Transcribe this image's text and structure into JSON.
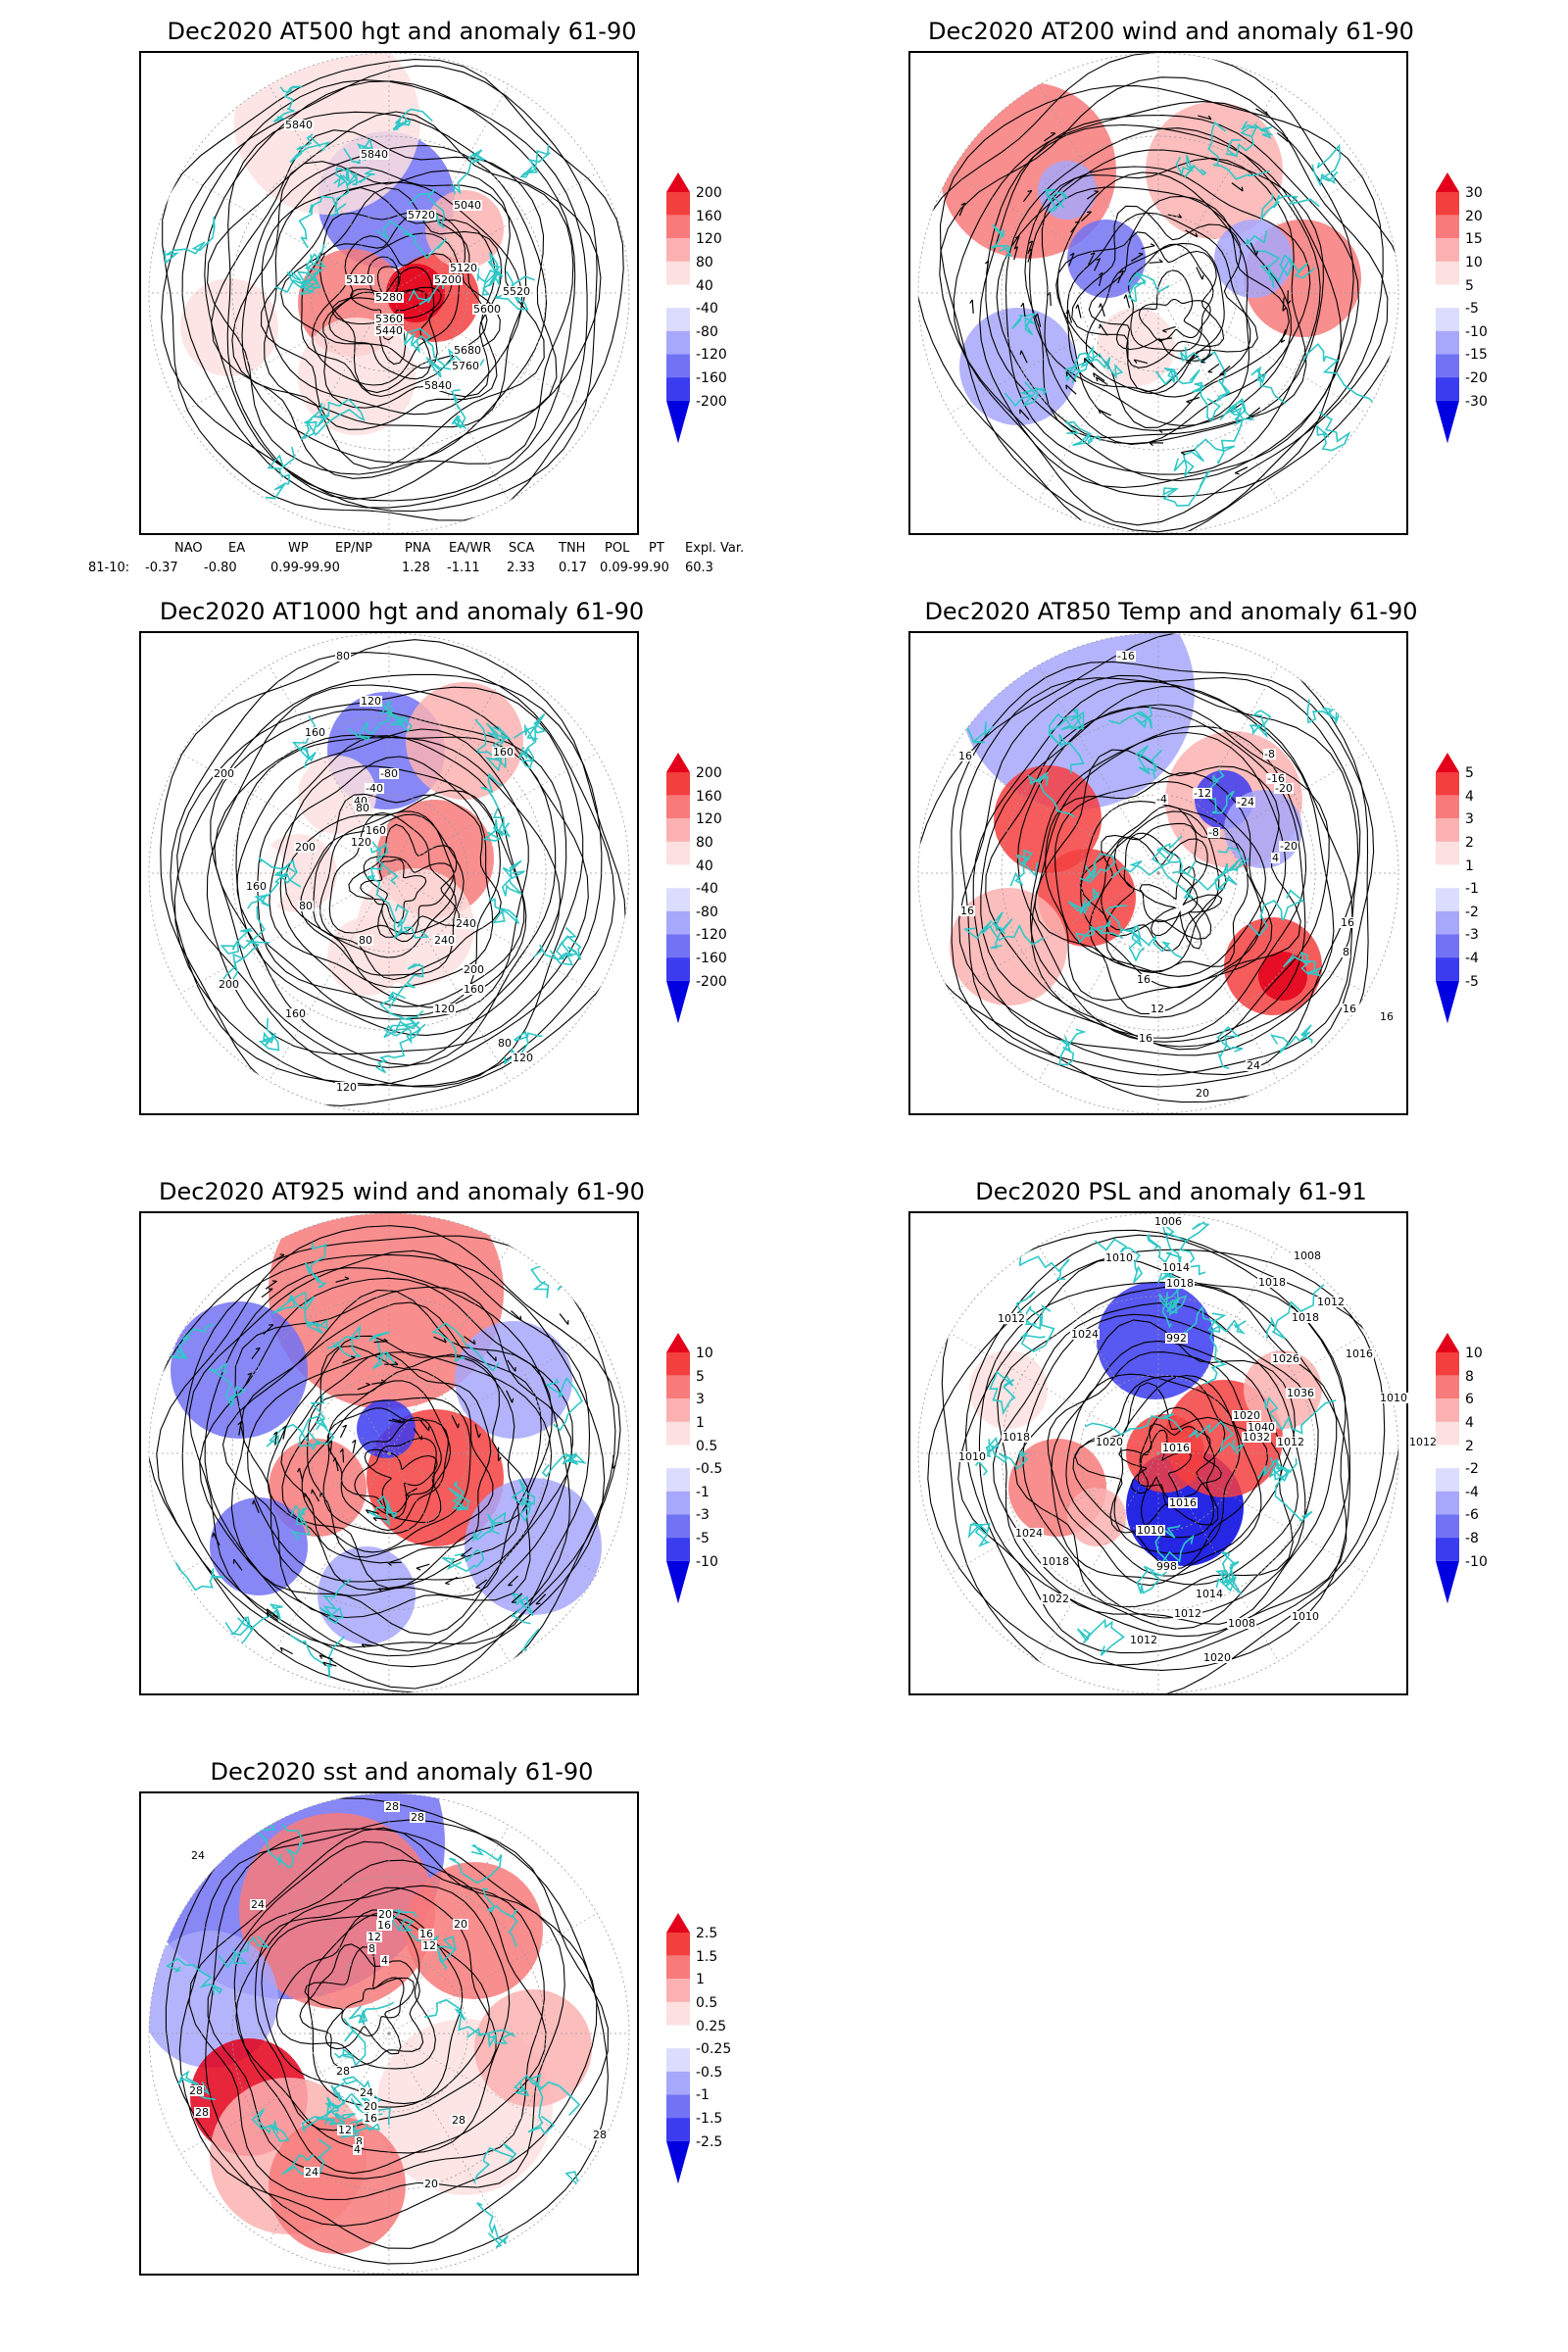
{
  "panels": [
    {
      "id": "at500",
      "title": "Dec2020 AT500 hgt and anomaly 61-90",
      "colorbar": {
        "labels": [
          "200",
          "160",
          "120",
          "80",
          "40",
          "-40",
          "-80",
          "-120",
          "-160",
          "-200"
        ],
        "colors": [
          "#e3001a",
          "#f43f3f",
          "#f87a7a",
          "#fbb1b1",
          "#fde0e0",
          "#ffffff",
          "#dcdcff",
          "#a7a7fb",
          "#7272f5",
          "#3b3bf0",
          "#0000e0"
        ]
      },
      "contour_labels": [
        "5840",
        "5840",
        "5040",
        "5720",
        "5120",
        "5200",
        "5120",
        "5280",
        "5520",
        "5600",
        "5360",
        "5440",
        "5680",
        "5760",
        "5840"
      ]
    },
    {
      "id": "at200",
      "title": "Dec2020 AT200 wind and anomaly 61-90",
      "colorbar": {
        "labels": [
          "30",
          "20",
          "15",
          "10",
          "5",
          "-5",
          "-10",
          "-15",
          "-20",
          "-30"
        ],
        "colors": [
          "#e3001a",
          "#f43f3f",
          "#f87a7a",
          "#fbb1b1",
          "#fde0e0",
          "#ffffff",
          "#dcdcff",
          "#a7a7fb",
          "#7272f5",
          "#3b3bf0",
          "#0000e0"
        ]
      },
      "contour_labels": []
    },
    {
      "id": "at1000",
      "title": "Dec2020 AT1000 hgt and anomaly 61-90",
      "colorbar": {
        "labels": [
          "200",
          "160",
          "120",
          "80",
          "40",
          "-40",
          "-80",
          "-120",
          "-160",
          "-200"
        ],
        "colors": [
          "#e3001a",
          "#f43f3f",
          "#f87a7a",
          "#fbb1b1",
          "#fde0e0",
          "#ffffff",
          "#dcdcff",
          "#a7a7fb",
          "#7272f5",
          "#3b3bf0",
          "#0000e0"
        ]
      },
      "contour_labels": [
        "80",
        "120",
        "160",
        "200",
        "200",
        "160",
        "80",
        "80",
        "-80",
        "-40",
        "40",
        "80",
        "120",
        "160",
        "160",
        "240",
        "240",
        "200",
        "160",
        "200",
        "120",
        "160",
        "80",
        "120",
        "120"
      ]
    },
    {
      "id": "at850",
      "title": "Dec2020 AT850 Temp and anomaly 61-90",
      "colorbar": {
        "labels": [
          "5",
          "4",
          "3",
          "2",
          "1",
          "-1",
          "-2",
          "-3",
          "-4",
          "-5"
        ],
        "colors": [
          "#e3001a",
          "#f43f3f",
          "#f87a7a",
          "#fbb1b1",
          "#fde0e0",
          "#ffffff",
          "#dcdcff",
          "#a7a7fb",
          "#7272f5",
          "#3b3bf0",
          "#0000e0"
        ]
      },
      "contour_labels": [
        "-16",
        "16",
        "16",
        "-8",
        "-16",
        "-24",
        "-20",
        "-20",
        "-12",
        "-8",
        "-4",
        "4",
        "8",
        "16",
        "16",
        "12",
        "16",
        "24",
        "20",
        "16",
        "16"
      ]
    },
    {
      "id": "at925",
      "title": "Dec2020 AT925 wind and anomaly 61-90",
      "colorbar": {
        "labels": [
          "10",
          "5",
          "3",
          "1",
          "0.5",
          "-0.5",
          "-1",
          "-3",
          "-5",
          "-10"
        ],
        "colors": [
          "#e3001a",
          "#f43f3f",
          "#f87a7a",
          "#fbb1b1",
          "#fde0e0",
          "#ffffff",
          "#dcdcff",
          "#a7a7fb",
          "#7272f5",
          "#3b3bf0",
          "#0000e0"
        ]
      },
      "contour_labels": []
    },
    {
      "id": "psl",
      "title": "Dec2020 PSL and anomaly 61-91",
      "colorbar": {
        "labels": [
          "10",
          "8",
          "6",
          "4",
          "2",
          "-2",
          "-4",
          "-6",
          "-8",
          "-10"
        ],
        "colors": [
          "#e3001a",
          "#f43f3f",
          "#f87a7a",
          "#fbb1b1",
          "#fde0e0",
          "#ffffff",
          "#dcdcff",
          "#a7a7fb",
          "#7272f5",
          "#3b3bf0",
          "#0000e0"
        ]
      },
      "contour_labels": [
        "1006",
        "1008",
        "1010",
        "1014",
        "1018",
        "1018",
        "1012",
        "1012",
        "1024",
        "992",
        "1026",
        "1018",
        "1016",
        "1012",
        "1010",
        "1020",
        "1040",
        "1036",
        "1032",
        "1012",
        "1016",
        "1020",
        "1018",
        "1024",
        "1016",
        "1010",
        "998",
        "1010",
        "1018",
        "1014",
        "1012",
        "1008",
        "1012",
        "1010",
        "1020",
        "1022"
      ]
    },
    {
      "id": "sst",
      "title": "Dec2020 sst and anomaly 61-90",
      "colorbar": {
        "labels": [
          "2.5",
          "1.5",
          "1",
          "0.5",
          "0.25",
          "-0.25",
          "-0.5",
          "-1",
          "-1.5",
          "-2.5"
        ],
        "colors": [
          "#e3001a",
          "#f43f3f",
          "#f87a7a",
          "#fbb1b1",
          "#fde0e0",
          "#ffffff",
          "#dcdcff",
          "#a7a7fb",
          "#7272f5",
          "#3b3bf0",
          "#0000e0"
        ]
      },
      "contour_labels": [
        "28",
        "28",
        "24",
        "24",
        "20",
        "16",
        "12",
        "8",
        "4",
        "20",
        "16",
        "12",
        "28",
        "28",
        "28",
        "24",
        "20",
        "16",
        "12",
        "8",
        "4",
        "28",
        "28",
        "20",
        "24"
      ]
    }
  ],
  "teleconnection": {
    "headers": [
      "NAO",
      "EA",
      "WP",
      "EP/NP",
      "PNA",
      "EA/WR",
      "SCA",
      "TNH",
      "POL",
      "PT",
      "Expl. Var."
    ],
    "row_label": "81-10:",
    "values": [
      "-0.37",
      "-0.80",
      "0.99-99.90",
      "1.28",
      "-1.11",
      "2.33",
      "0.17",
      "0.09-99.90",
      "60.3"
    ]
  },
  "colors": {
    "coastline": "#2fc7c7",
    "contour": "#000000",
    "grid": "#9a9a9a"
  }
}
